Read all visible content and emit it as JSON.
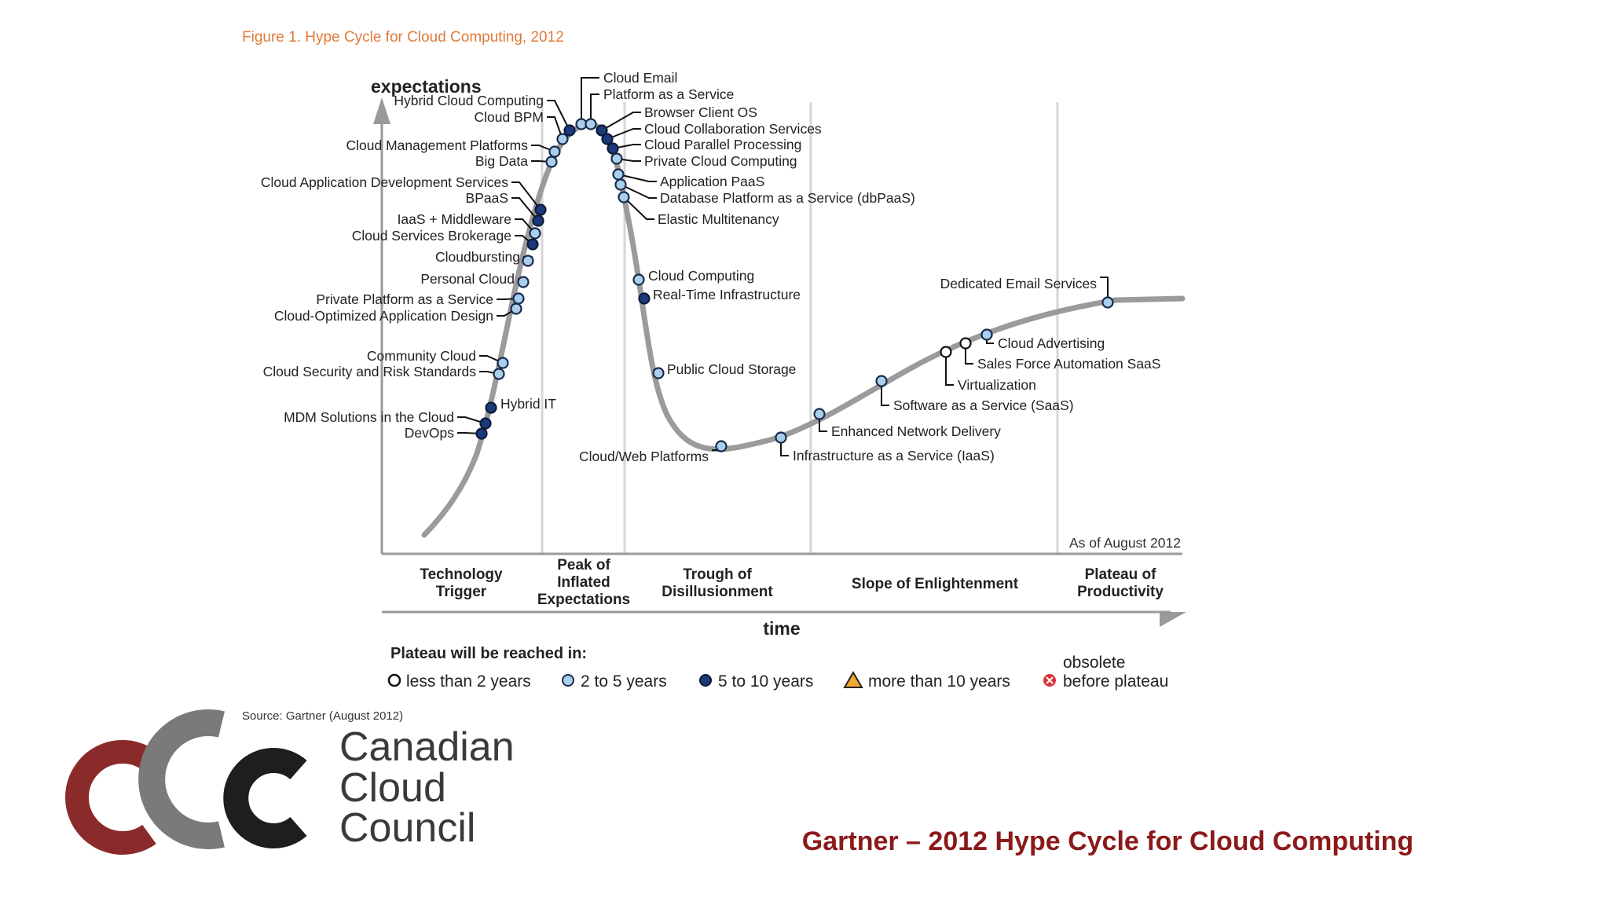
{
  "figure_title": "Figure 1. Hype Cycle for Cloud Computing, 2012",
  "y_axis_label": "expectations",
  "x_axis_label": "time",
  "as_of": "As of August 2012",
  "phases": [
    {
      "lines": [
        "Technology",
        "Trigger"
      ]
    },
    {
      "lines": [
        "Peak of",
        "Inflated",
        "Expectations"
      ]
    },
    {
      "lines": [
        "Trough of",
        "Disillusionment"
      ]
    },
    {
      "lines": [
        "Slope of Enlightenment"
      ]
    },
    {
      "lines": [
        "Plateau of",
        "Productivity"
      ]
    }
  ],
  "plateau_legend": {
    "title": "Plateau will be reached in:",
    "items": [
      {
        "key": "lt2",
        "label": "less than 2 years",
        "color": "#ffffff"
      },
      {
        "key": "2to5",
        "label": "2 to 5 years",
        "color": "#a9cfee"
      },
      {
        "key": "5to10",
        "label": "5 to 10 years",
        "color": "#1b3a7a"
      },
      {
        "key": "gt10",
        "label": "more than 10 years",
        "color": "#f0a830"
      },
      {
        "key": "obs",
        "label_lines": [
          "obsolete",
          "before plateau"
        ],
        "color": "#e0303a"
      }
    ]
  },
  "technologies": [
    {
      "name": "Cloud Email",
      "plateau": "2to5"
    },
    {
      "name": "Platform as a Service",
      "plateau": "2to5"
    },
    {
      "name": "Hybrid Cloud Computing",
      "plateau": "5to10"
    },
    {
      "name": "Cloud BPM",
      "plateau": "2to5"
    },
    {
      "name": "Cloud Management Platforms",
      "plateau": "2to5"
    },
    {
      "name": "Big Data",
      "plateau": "2to5"
    },
    {
      "name": "Cloud Application Development Services",
      "plateau": "5to10"
    },
    {
      "name": "BPaaS",
      "plateau": "5to10"
    },
    {
      "name": "IaaS + Middleware",
      "plateau": "2to5"
    },
    {
      "name": "Cloud Services Brokerage",
      "plateau": "5to10"
    },
    {
      "name": "Cloudbursting",
      "plateau": "2to5"
    },
    {
      "name": "Personal Cloud",
      "plateau": "2to5"
    },
    {
      "name": "Private Platform as a Service",
      "plateau": "2to5"
    },
    {
      "name": "Cloud-Optimized Application Design",
      "plateau": "2to5"
    },
    {
      "name": "Community Cloud",
      "plateau": "2to5"
    },
    {
      "name": "Cloud Security and Risk Standards",
      "plateau": "2to5"
    },
    {
      "name": "Hybrid IT",
      "plateau": "5to10"
    },
    {
      "name": "MDM Solutions in the Cloud",
      "plateau": "5to10"
    },
    {
      "name": "DevOps",
      "plateau": "5to10"
    },
    {
      "name": "Browser Client OS",
      "plateau": "5to10"
    },
    {
      "name": "Cloud Collaboration Services",
      "plateau": "5to10"
    },
    {
      "name": "Cloud Parallel Processing",
      "plateau": "5to10"
    },
    {
      "name": "Private Cloud Computing",
      "plateau": "2to5"
    },
    {
      "name": "Application PaaS",
      "plateau": "2to5"
    },
    {
      "name": "Database Platform as a Service (dbPaaS)",
      "plateau": "2to5"
    },
    {
      "name": "Elastic Multitenancy",
      "plateau": "2to5"
    },
    {
      "name": "Cloud Computing",
      "plateau": "2to5"
    },
    {
      "name": "Real-Time Infrastructure",
      "plateau": "5to10"
    },
    {
      "name": "Public Cloud Storage",
      "plateau": "2to5"
    },
    {
      "name": "Cloud/Web Platforms",
      "plateau": "2to5"
    },
    {
      "name": "Infrastructure as a Service (IaaS)",
      "plateau": "2to5"
    },
    {
      "name": "Enhanced Network Delivery",
      "plateau": "2to5"
    },
    {
      "name": "Software as a Service (SaaS)",
      "plateau": "2to5"
    },
    {
      "name": "Virtualization",
      "plateau": "lt2"
    },
    {
      "name": "Sales Force Automation SaaS",
      "plateau": "lt2"
    },
    {
      "name": "Cloud Advertising",
      "plateau": "2to5"
    },
    {
      "name": "Dedicated Email Services",
      "plateau": "2to5"
    }
  ],
  "source": "Source: Gartner (August 2012)",
  "logo": {
    "words": [
      "Canadian",
      "Cloud",
      "Council"
    ],
    "colors": {
      "c1": "#8b2a2a",
      "c2": "#7a7a7a",
      "c3": "#1e1e1e"
    }
  },
  "slide_title": "Gartner – 2012 Hype Cycle for Cloud Computing"
}
